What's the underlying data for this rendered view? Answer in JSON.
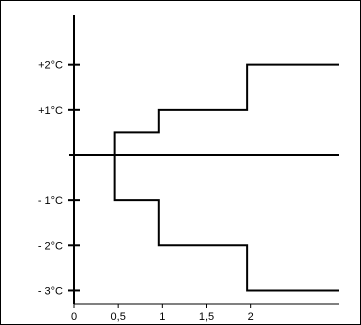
{
  "chart_data": {
    "type": "line",
    "title": "",
    "xlabel": "",
    "ylabel": "",
    "x_ticks": [
      {
        "value": 0,
        "label": "0"
      },
      {
        "value": 0.5,
        "label": "0,5"
      },
      {
        "value": 1,
        "label": "1"
      },
      {
        "value": 1.5,
        "label": "1,5"
      },
      {
        "value": 2,
        "label": "2"
      }
    ],
    "y_ticks": [
      {
        "value": 2,
        "label": "+2°C"
      },
      {
        "value": 1,
        "label": "+1°C"
      },
      {
        "value": -1,
        "label": "- 1°C"
      },
      {
        "value": -2,
        "label": "- 2°C"
      },
      {
        "value": -3,
        "label": "- 3°C"
      }
    ],
    "xlim": [
      0,
      3
    ],
    "ylim": [
      -3.3,
      3.1
    ],
    "baseline_y": 0,
    "series": [
      {
        "step": "post",
        "points": [
          [
            0.46,
            0.5
          ],
          [
            0.96,
            1
          ],
          [
            1.96,
            2
          ],
          [
            3.0,
            2
          ]
        ]
      },
      {
        "step": "post",
        "points": [
          [
            0.46,
            -1
          ],
          [
            0.96,
            -2
          ],
          [
            1.96,
            -3
          ],
          [
            3.0,
            -3
          ]
        ]
      }
    ],
    "line_color": "#000000",
    "grid": false
  }
}
